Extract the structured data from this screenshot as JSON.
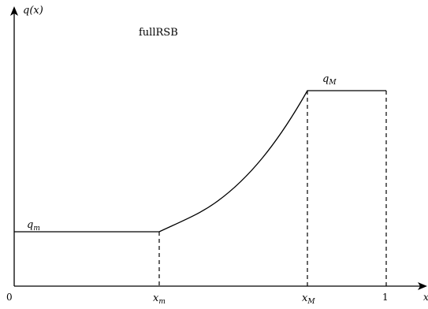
{
  "diagram": {
    "title": "fullRSB",
    "y_axis_label": "q(x)",
    "x_axis_label": "x",
    "x_ticks": [
      {
        "id": "zero",
        "text": "0"
      },
      {
        "id": "xm",
        "text": "x_m"
      },
      {
        "id": "xM",
        "text": "x_M"
      },
      {
        "id": "one",
        "text": "1"
      }
    ],
    "plateau_low_label": "q_m",
    "plateau_high_label": "q_M",
    "colors": {
      "stroke": "#000000",
      "background": "#ffffff"
    }
  }
}
